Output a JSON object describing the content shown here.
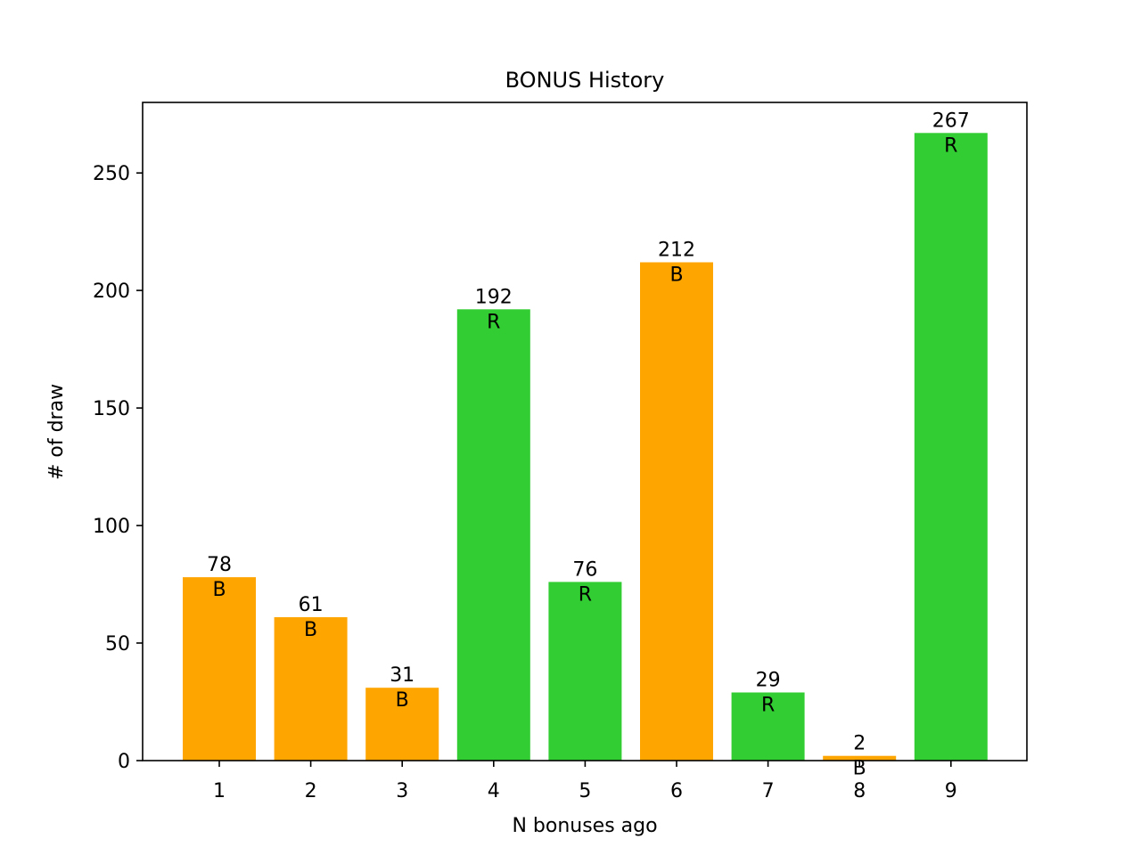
{
  "chart_data": {
    "type": "bar",
    "title": "BONUS History",
    "xlabel": "N bonuses ago",
    "ylabel": "# of draw",
    "categories": [
      "1",
      "2",
      "3",
      "4",
      "5",
      "6",
      "7",
      "8",
      "9"
    ],
    "values": [
      78,
      61,
      31,
      192,
      76,
      212,
      29,
      2,
      267
    ],
    "bar_letters": [
      "B",
      "B",
      "B",
      "R",
      "R",
      "B",
      "R",
      "B",
      "R"
    ],
    "bar_colors": [
      "#ffa500",
      "#ffa500",
      "#ffa500",
      "#32cd32",
      "#32cd32",
      "#ffa500",
      "#32cd32",
      "#ffa500",
      "#32cd32"
    ],
    "ylim": [
      0,
      280
    ],
    "yticks": [
      0,
      50,
      100,
      150,
      200,
      250
    ],
    "grid": false
  }
}
